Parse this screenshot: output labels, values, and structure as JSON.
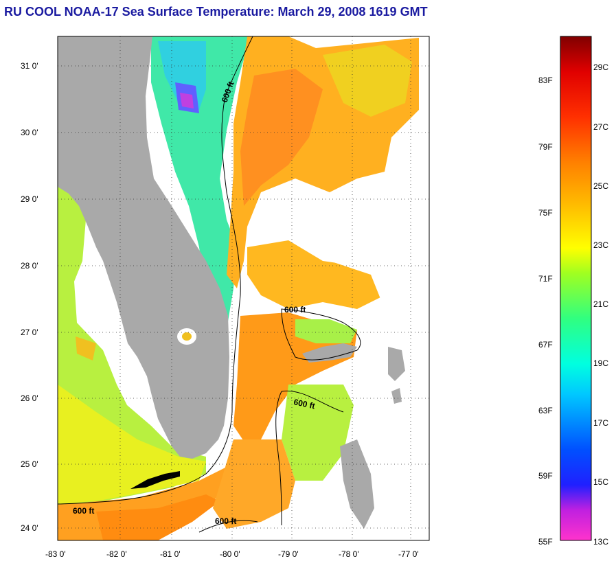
{
  "title": "RU COOL  NOAA-17  Sea Surface Temperature:  March 29, 2008 1619 GMT",
  "map": {
    "lon_ticks": [
      "-83 0'",
      "-82 0'",
      "-81 0'",
      "-80 0'",
      "-79 0'",
      "-78 0'",
      "-77 0'"
    ],
    "lat_ticks": [
      "31 0'",
      "30 0'",
      "29 0'",
      "28 0'",
      "27 0'",
      "26 0'",
      "25 0'",
      "24 0'"
    ],
    "contour_labels": [
      "600 ft",
      "600 ft",
      "600 ft",
      "600 ft",
      "600 ft"
    ]
  },
  "colorbar": {
    "fahrenheit_labels": [
      "83F",
      "79F",
      "75F",
      "71F",
      "67F",
      "63F",
      "59F",
      "55F"
    ],
    "celsius_labels": [
      "29C",
      "27C",
      "25C",
      "23C",
      "21C",
      "19C",
      "17C",
      "15C",
      "13C"
    ]
  },
  "colors": {
    "land": "#a9a9a9",
    "cloud": "#ffffff",
    "contour": "#000000",
    "title": "#1a1aa0"
  }
}
